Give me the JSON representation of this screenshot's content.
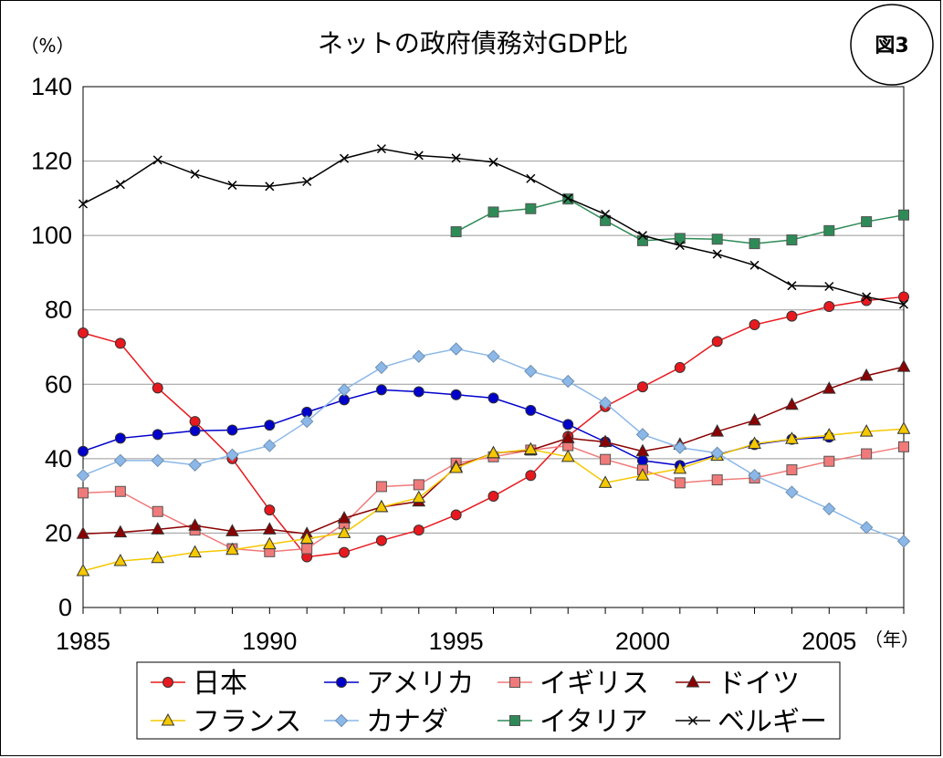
{
  "chart_data": {
    "type": "line",
    "title": "ネットの政府債務対GDP比",
    "badge": "図3",
    "y_unit": "（%）",
    "x_unit": "（年）",
    "xlim": [
      1985,
      2007
    ],
    "ylim": [
      0,
      140
    ],
    "y_ticks": [
      "0",
      "20",
      "40",
      "60",
      "80",
      "100",
      "120",
      "140"
    ],
    "x_ticks": [
      "1985",
      "1990",
      "1995",
      "2000",
      "2005"
    ],
    "grid": true,
    "legend_position": "bottom",
    "series": [
      {
        "name": "日本",
        "color": "#E8191E",
        "marker": "circle",
        "x": [
          1985,
          1986,
          1987,
          1988,
          1989,
          1990,
          1991,
          1992,
          1993,
          1994,
          1995,
          1996,
          1997,
          1998,
          1999,
          2000,
          2001,
          2002,
          2003,
          2004,
          2005,
          2006,
          2007
        ],
        "values": [
          73.8,
          71,
          59,
          50,
          40,
          26.2,
          13.6,
          14.8,
          18,
          20.8,
          24.9,
          29.9,
          35.5,
          46,
          54,
          59.3,
          64.5,
          71.5,
          76,
          78.3,
          80.9,
          82.5,
          83.5
        ]
      },
      {
        "name": "アメリカ",
        "color": "#0000CC",
        "marker": "circle",
        "x": [
          1985,
          1986,
          1987,
          1988,
          1989,
          1990,
          1991,
          1992,
          1993,
          1994,
          1995,
          1996,
          1997,
          1998,
          1999,
          2000,
          2001,
          2002,
          2003,
          2004,
          2005
        ],
        "values": [
          42,
          45.5,
          46.5,
          47.5,
          47.7,
          49,
          52.5,
          55.8,
          58.5,
          58,
          57.2,
          56.3,
          53,
          49.2,
          44.5,
          39.5,
          38.2,
          41,
          43.8,
          45.2,
          45.8
        ]
      },
      {
        "name": "イギリス",
        "color": "#F07A7A",
        "marker": "square",
        "x": [
          1985,
          1986,
          1987,
          1988,
          1989,
          1990,
          1991,
          1992,
          1993,
          1994,
          1995,
          1996,
          1997,
          1998,
          1999,
          2000,
          2001,
          2002,
          2003,
          2004,
          2005,
          2006,
          2007
        ],
        "values": [
          30.8,
          31.2,
          25.8,
          20.8,
          15.8,
          15,
          15.8,
          22.5,
          32.5,
          33,
          38.8,
          40.5,
          42.3,
          43.5,
          39.8,
          37,
          33.5,
          34.3,
          34.8,
          37,
          39.3,
          41.3,
          43.2
        ]
      },
      {
        "name": "ドイツ",
        "color": "#8B0000",
        "marker": "triangle",
        "x": [
          1985,
          1986,
          1987,
          1988,
          1989,
          1990,
          1991,
          1992,
          1993,
          1994,
          1995,
          1996,
          1997,
          1998,
          1999,
          2000,
          2001,
          2002,
          2003,
          2004,
          2005,
          2006,
          2007
        ],
        "values": [
          19.8,
          20.2,
          21,
          22,
          20.5,
          21,
          19.8,
          24,
          27,
          28.5,
          37.8,
          41.5,
          42.3,
          45.5,
          44.5,
          42,
          43.8,
          47.3,
          50.3,
          54.5,
          58.8,
          62.3,
          64.7
        ]
      },
      {
        "name": "フランス",
        "color": "#F5C800",
        "marker": "triangle",
        "x": [
          1985,
          1986,
          1987,
          1988,
          1989,
          1990,
          1991,
          1992,
          1993,
          1994,
          1995,
          1996,
          1997,
          1998,
          1999,
          2000,
          2001,
          2002,
          2003,
          2004,
          2005,
          2006,
          2007
        ],
        "values": [
          9.8,
          12.5,
          13.3,
          14.8,
          15.5,
          17,
          18.5,
          20,
          27,
          29.5,
          37.5,
          41.5,
          42.5,
          40.5,
          33.5,
          35.5,
          37.3,
          40.8,
          44,
          45.3,
          46.3,
          47.3,
          48
        ]
      },
      {
        "name": "カナダ",
        "color": "#8BB8E8",
        "marker": "diamond",
        "x": [
          1985,
          1986,
          1987,
          1988,
          1989,
          1990,
          1991,
          1992,
          1993,
          1994,
          1995,
          1996,
          1997,
          1998,
          1999,
          2000,
          2001,
          2002,
          2003,
          2004,
          2005,
          2006,
          2007
        ],
        "values": [
          35.5,
          39.5,
          39.5,
          38.3,
          41,
          43.5,
          50,
          58.5,
          64.5,
          67.5,
          69.5,
          67.5,
          63.5,
          60.8,
          55,
          46.5,
          43,
          41.5,
          35.5,
          31,
          26.5,
          21.5,
          17.8
        ]
      },
      {
        "name": "イタリア",
        "color": "#2E8B57",
        "marker": "square",
        "x": [
          1995,
          1996,
          1997,
          1998,
          1999,
          2000,
          2001,
          2002,
          2003,
          2004,
          2005,
          2006,
          2007
        ],
        "values": [
          101,
          106.3,
          107.2,
          109.8,
          104,
          98.6,
          99.2,
          99,
          97.8,
          98.8,
          101.3,
          103.7,
          105.5
        ]
      },
      {
        "name": "ベルギー",
        "color": "#000000",
        "marker": "x",
        "x": [
          1985,
          1986,
          1987,
          1988,
          1989,
          1990,
          1991,
          1992,
          1993,
          1994,
          1995,
          1996,
          1997,
          1998,
          1999,
          2000,
          2001,
          2002,
          2003,
          2004,
          2005,
          2006,
          2007
        ],
        "values": [
          108.5,
          113.7,
          120.3,
          116.5,
          113.5,
          113.2,
          114.5,
          120.7,
          123.3,
          121.5,
          120.8,
          119.7,
          115.3,
          110,
          105.7,
          100,
          97.3,
          95,
          92,
          86.5,
          86.3,
          83.5,
          81.5
        ]
      }
    ]
  }
}
